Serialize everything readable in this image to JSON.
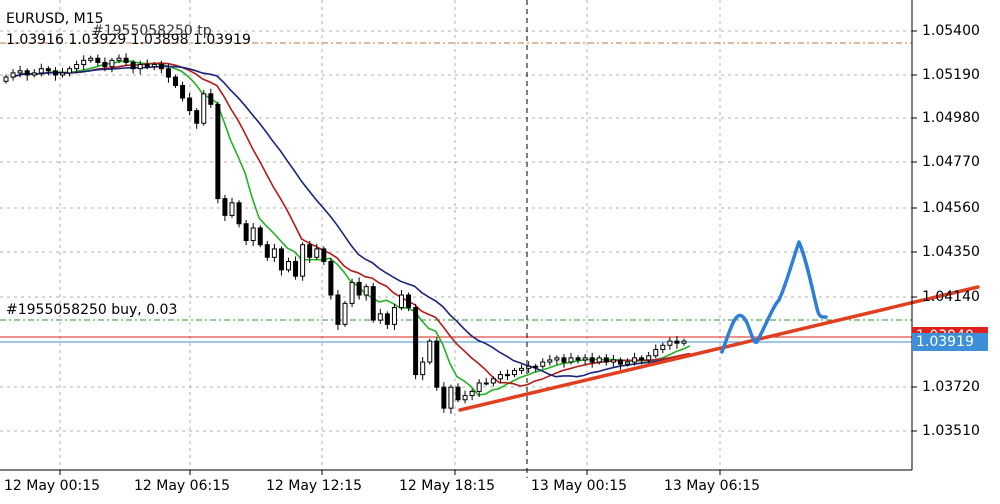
{
  "header": {
    "symbol_timeframe": "EURUSD, M15",
    "tp_label": "#1955058250 tp",
    "ohlc": "1.03916 1.03929 1.03898 1.03919"
  },
  "order_line": {
    "label": "#1955058250 buy, 0.03"
  },
  "price_tags": {
    "ask": "1.03940",
    "bid": "1.03919",
    "ask_color": "#e0201b",
    "bid_color": "#3d8fd8"
  },
  "colors": {
    "tp_line": "#c8743a",
    "order_line": "#2e8b2e",
    "trend_line": "#e0401f",
    "projection": "#2f7fd6",
    "ma_fast": "#22b322",
    "ma_mid": "#b31b1b",
    "ma_slow": "#1a237e",
    "grid": "#b0b0b0",
    "crosshair": "#000000"
  },
  "chart_data": {
    "type": "candlestick",
    "symbol": "EURUSD",
    "timeframe": "M15",
    "y_ticks": [
      "1.05400",
      "1.05190",
      "1.04980",
      "1.04770",
      "1.04560",
      "1.04350",
      "1.04140",
      "1.03720",
      "1.03510"
    ],
    "x_ticks": [
      "12 May 00:15",
      "12 May 06:15",
      "12 May 12:15",
      "12 May 18:15",
      "13 May 00:15",
      "13 May 06:15"
    ],
    "ylim": [
      1.0331,
      1.0557
    ],
    "grid": true,
    "last_ohlc": {
      "open": 1.03916,
      "high": 1.03929,
      "low": 1.03898,
      "close": 1.03919
    },
    "closes": [
      1.0518,
      1.052,
      1.0521,
      1.0519,
      1.052,
      1.0522,
      1.0521,
      1.0519,
      1.052,
      1.0522,
      1.0524,
      1.0526,
      1.0527,
      1.0525,
      1.0523,
      1.0526,
      1.0527,
      1.0525,
      1.0522,
      1.0524,
      1.0523,
      1.0524,
      1.0522,
      1.0518,
      1.0514,
      1.0508,
      1.0502,
      1.0496,
      1.051,
      1.0505,
      1.046,
      1.0452,
      1.0458,
      1.0448,
      1.044,
      1.0446,
      1.0438,
      1.0432,
      1.0436,
      1.0426,
      1.043,
      1.0423,
      1.0438,
      1.0432,
      1.0436,
      1.043,
      1.0414,
      1.04,
      1.041,
      1.042,
      1.0414,
      1.0418,
      1.0402,
      1.0405,
      1.04,
      1.0408,
      1.0414,
      1.0408,
      1.0376,
      1.0382,
      1.0392,
      1.037,
      1.036,
      1.037,
      1.0364,
      1.0366,
      1.0368,
      1.0372,
      1.0372,
      1.0374,
      1.0376,
      1.0376,
      1.0378,
      1.0379,
      1.038,
      1.038,
      1.0382,
      1.0383,
      1.0384,
      1.0382,
      1.0384,
      1.0383,
      1.0384,
      1.0382,
      1.0384,
      1.0382,
      1.0383,
      1.0381,
      1.0382,
      1.0384,
      1.0383,
      1.0385,
      1.0388,
      1.039,
      1.0392,
      1.0391,
      1.0392
    ]
  }
}
